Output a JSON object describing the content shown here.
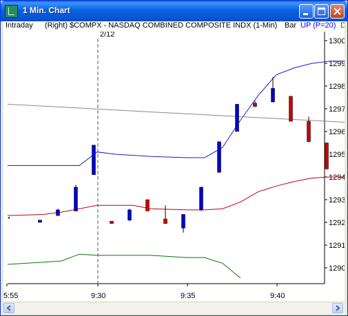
{
  "window": {
    "title": "1 Min. Chart",
    "controls": [
      "minimize",
      "maximize",
      "close"
    ]
  },
  "infobar": {
    "mode": "Intraday",
    "axis_side": "(Right)",
    "symbol": "$COMPX - NASDAQ COMBINED COMPOSITE INDX (1-Min)",
    "style": "Bar",
    "indicator": "UP (P=20)",
    "indicator_color": "#0000ff",
    "cut_label": "D"
  },
  "chart_data": {
    "type": "candlestick",
    "date_marker": "2/12",
    "y_ticks": [
      "1300",
      "1299",
      "1298",
      "1297",
      "1296",
      "1295",
      "1294",
      "1293",
      "1292",
      "1291",
      "1290"
    ],
    "x_ticks": [
      "5:55",
      "9:30",
      "9:35",
      "9:40"
    ],
    "ylim": [
      1289.4,
      1300.1
    ],
    "up_color": "#0000c8",
    "down_color": "#cc0000",
    "bars": [
      {
        "x": 0,
        "o": 1292.2,
        "c": 1292.2,
        "h": 1292.2,
        "l": 1292.2
      },
      {
        "x": 1,
        "o": 1292.0,
        "c": 1292.1,
        "h": 1292.1,
        "l": 1292.0
      },
      {
        "x": 2,
        "o": 1292.3,
        "c": 1292.55,
        "h": 1292.6,
        "l": 1292.3
      },
      {
        "x": 3,
        "o": 1292.5,
        "c": 1293.55,
        "h": 1293.65,
        "l": 1292.5
      },
      {
        "x": 4,
        "o": 1294.1,
        "c": 1295.4,
        "h": 1295.4,
        "l": 1294.1
      },
      {
        "x": 5,
        "o": 1292.05,
        "c": 1291.95,
        "h": 1292.05,
        "l": 1291.95
      },
      {
        "x": 6,
        "o": 1292.1,
        "c": 1292.55,
        "h": 1292.6,
        "l": 1292.05
      },
      {
        "x": 7,
        "o": 1293.0,
        "c": 1292.5,
        "h": 1293.0,
        "l": 1292.5
      },
      {
        "x": 8,
        "o": 1292.15,
        "c": 1291.95,
        "h": 1292.75,
        "l": 1291.95
      },
      {
        "x": 9,
        "o": 1291.75,
        "c": 1292.35,
        "h": 1292.35,
        "l": 1291.55
      },
      {
        "x": 10,
        "o": 1292.55,
        "c": 1293.55,
        "h": 1293.55,
        "l": 1292.5
      },
      {
        "x": 11,
        "o": 1294.2,
        "c": 1295.55,
        "h": 1295.55,
        "l": 1294.2
      },
      {
        "x": 12,
        "o": 1296.0,
        "c": 1297.2,
        "h": 1297.2,
        "l": 1296.0
      },
      {
        "x": 13,
        "o": 1297.25,
        "c": 1297.1,
        "h": 1297.35,
        "l": 1297.1
      },
      {
        "x": 14,
        "o": 1297.3,
        "c": 1297.9,
        "h": 1298.4,
        "l": 1297.3
      },
      {
        "x": 15,
        "o": 1297.55,
        "c": 1296.45,
        "h": 1297.55,
        "l": 1296.45
      },
      {
        "x": 16,
        "o": 1296.45,
        "c": 1295.55,
        "h": 1296.65,
        "l": 1295.55
      },
      {
        "x": 17,
        "o": 1295.5,
        "c": 1294.35,
        "h": 1295.5,
        "l": 1294.35
      }
    ],
    "series": [
      {
        "name": "UP (P=20)",
        "color": "#1a1ad0",
        "points": [
          [
            -1,
            1294.5
          ],
          [
            3,
            1294.5
          ],
          [
            4,
            1295.1
          ],
          [
            5,
            1295.0
          ],
          [
            7,
            1294.9
          ],
          [
            9,
            1294.85
          ],
          [
            10,
            1294.85
          ],
          [
            11,
            1295.3
          ],
          [
            12,
            1296.5
          ],
          [
            13,
            1297.6
          ],
          [
            14,
            1298.5
          ],
          [
            15,
            1298.8
          ],
          [
            16,
            1299.0
          ],
          [
            17,
            1299.1
          ],
          [
            18,
            1299.1
          ]
        ]
      },
      {
        "color": "#c00000",
        "points": [
          [
            -1,
            1292.3
          ],
          [
            1,
            1292.35
          ],
          [
            2,
            1292.45
          ],
          [
            3,
            1292.6
          ],
          [
            4,
            1292.75
          ],
          [
            6,
            1292.75
          ],
          [
            7,
            1292.6
          ],
          [
            9,
            1292.55
          ],
          [
            10,
            1292.55
          ],
          [
            11,
            1292.6
          ],
          [
            12,
            1292.9
          ],
          [
            13,
            1293.35
          ],
          [
            14,
            1293.6
          ],
          [
            15,
            1293.8
          ],
          [
            16,
            1293.95
          ],
          [
            17,
            1294.0
          ],
          [
            18,
            1294.0
          ]
        ]
      },
      {
        "color": "#007a00",
        "points": [
          [
            -1,
            1290.15
          ],
          [
            1,
            1290.25
          ],
          [
            2,
            1290.3
          ],
          [
            3,
            1290.6
          ],
          [
            4,
            1290.55
          ],
          [
            6,
            1290.55
          ],
          [
            7,
            1290.55
          ],
          [
            9,
            1290.45
          ],
          [
            10,
            1290.45
          ],
          [
            11,
            1290.2
          ],
          [
            12,
            1289.55
          ]
        ]
      },
      {
        "color": "#888888",
        "points": [
          [
            -1,
            1297.2
          ],
          [
            18,
            1296.4
          ]
        ]
      }
    ]
  }
}
